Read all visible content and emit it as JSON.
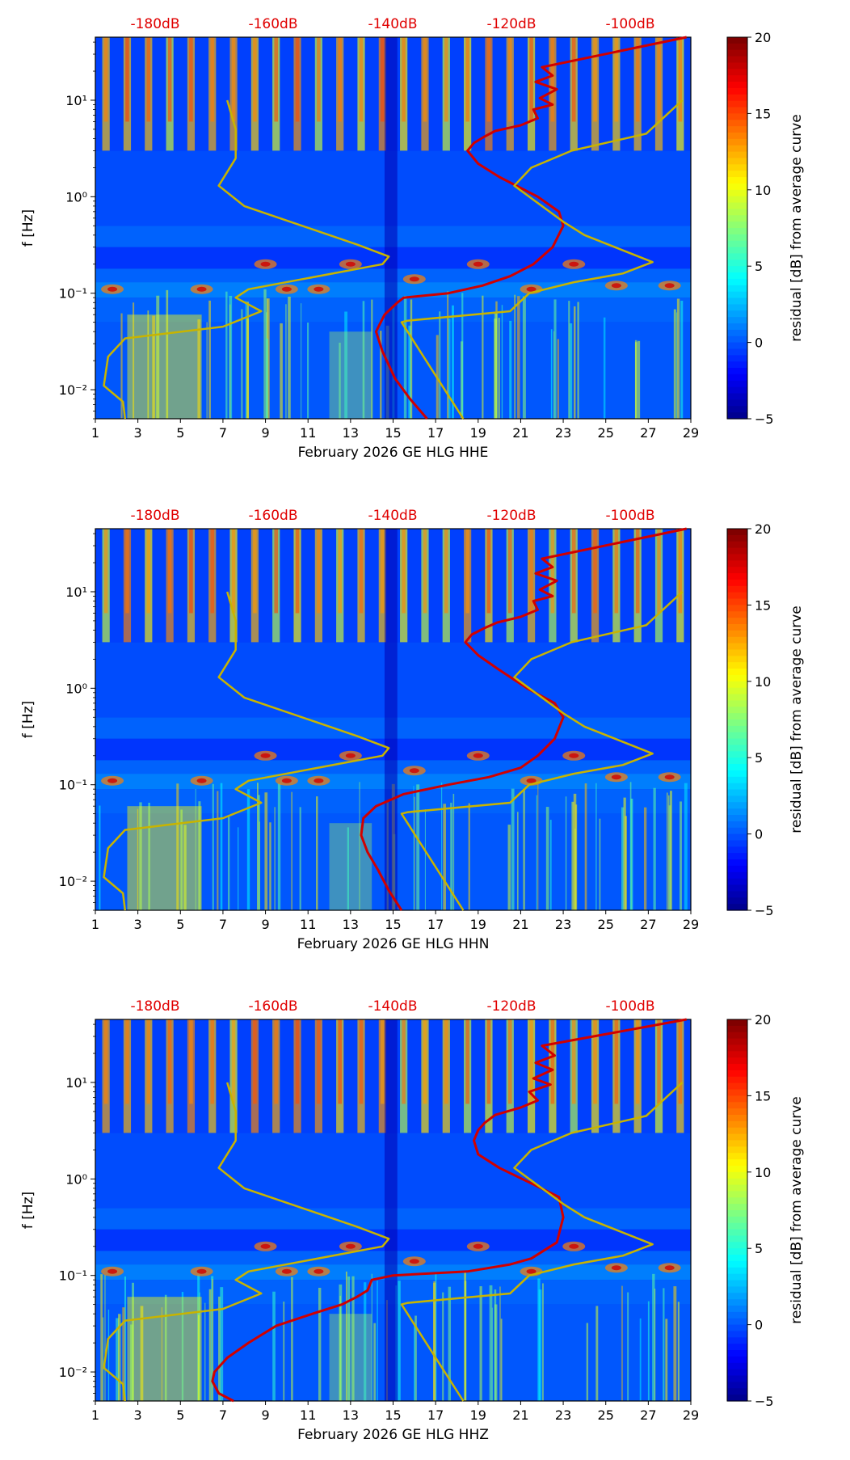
{
  "chart_data": [
    {
      "type": "heatmap",
      "xlabel": "February 2026 GE HLG  HHE",
      "ylabel": "f [Hz]",
      "x_ticks": [
        1,
        3,
        5,
        7,
        9,
        11,
        13,
        15,
        17,
        19,
        21,
        23,
        25,
        27,
        29
      ],
      "y_ticks": [
        "10⁻²",
        "10⁻¹",
        "10⁰",
        "10¹"
      ],
      "db_axis_labels": [
        "-180dB",
        "-160dB",
        "-140dB",
        "-120dB",
        "-100dB"
      ],
      "colorbar": {
        "label": "residual [dB] from average curve",
        "ticks": [
          20,
          15,
          10,
          5,
          0,
          -5
        ],
        "range": [
          -5,
          20
        ],
        "colormap": "jet"
      },
      "series": [
        {
          "color": "#d00000",
          "x": [
            16.6,
            15.8,
            15.1,
            14.5,
            14.2,
            14.6,
            15.2,
            15.5,
            17.6,
            19.2,
            20.5,
            21.6,
            22.5,
            23.0,
            22.8,
            21.8,
            20.0,
            19.0,
            18.5,
            18.8,
            19.3,
            19.8,
            21.0,
            21.8,
            21.6,
            22.5,
            21.9,
            22.7,
            21.7,
            22.5,
            22.0,
            28.8
          ],
          "y": [
            0.005,
            0.008,
            0.013,
            0.025,
            0.04,
            0.06,
            0.08,
            0.09,
            0.1,
            0.12,
            0.15,
            0.2,
            0.3,
            0.5,
            0.7,
            1.0,
            1.6,
            2.2,
            3.0,
            3.6,
            4.2,
            4.8,
            5.5,
            6.5,
            8.0,
            9.0,
            10.5,
            13.0,
            15.5,
            18.0,
            22.0,
            45.0
          ]
        },
        {
          "color": "#c8b400",
          "x": [
            2.4,
            2.3,
            1.4,
            1.6,
            2.4,
            7.0,
            8.8,
            7.6,
            8.2,
            14.5,
            14.8,
            13.3,
            8.0,
            6.8,
            7.6,
            7.6,
            7.2
          ],
          "y": [
            0.005,
            0.0075,
            0.011,
            0.022,
            0.034,
            0.045,
            0.065,
            0.09,
            0.11,
            0.2,
            0.24,
            0.32,
            0.8,
            1.3,
            2.5,
            5.0,
            10.0
          ]
        },
        {
          "color": "#c8b400",
          "x": [
            18.3,
            15.4,
            15.7,
            20.5,
            21.4,
            23.5,
            25.8,
            27.2,
            24.0,
            23.0,
            20.7,
            21.5,
            23.4,
            26.9,
            28.6
          ],
          "y": [
            0.005,
            0.05,
            0.052,
            0.065,
            0.1,
            0.13,
            0.16,
            0.21,
            0.4,
            0.55,
            1.3,
            2.0,
            3.0,
            4.5,
            10.0
          ]
        }
      ]
    },
    {
      "type": "heatmap",
      "xlabel": "February 2026 GE HLG  HHN",
      "ylabel": "f [Hz]",
      "x_ticks": [
        1,
        3,
        5,
        7,
        9,
        11,
        13,
        15,
        17,
        19,
        21,
        23,
        25,
        27,
        29
      ],
      "y_ticks": [
        "10⁻²",
        "10⁻¹",
        "10⁰",
        "10¹"
      ],
      "db_axis_labels": [
        "-180dB",
        "-160dB",
        "-140dB",
        "-120dB",
        "-100dB"
      ],
      "colorbar": {
        "label": "residual [dB] from average curve",
        "ticks": [
          20,
          15,
          10,
          5,
          0,
          -5
        ],
        "range": [
          -5,
          20
        ],
        "colormap": "jet"
      },
      "series": [
        {
          "color": "#d00000",
          "x": [
            15.4,
            14.8,
            14.3,
            13.8,
            13.5,
            13.6,
            14.2,
            15.5,
            17.6,
            19.5,
            21.0,
            21.8,
            22.6,
            23.0,
            22.6,
            21.3,
            19.9,
            19.0,
            18.4,
            18.7,
            19.3,
            19.9,
            21.0,
            21.8,
            21.6,
            22.5,
            21.9,
            22.7,
            21.7,
            22.5,
            22.0,
            28.8
          ],
          "y": [
            0.005,
            0.008,
            0.013,
            0.02,
            0.03,
            0.045,
            0.06,
            0.08,
            0.1,
            0.12,
            0.15,
            0.2,
            0.3,
            0.5,
            0.7,
            1.0,
            1.6,
            2.2,
            3.0,
            3.6,
            4.2,
            4.8,
            5.5,
            6.5,
            8.0,
            9.0,
            10.5,
            13.0,
            15.5,
            18.0,
            22.0,
            45.0
          ]
        },
        {
          "color": "#c8b400",
          "x": [
            2.4,
            2.3,
            1.4,
            1.6,
            2.4,
            7.0,
            8.8,
            7.6,
            8.2,
            14.5,
            14.8,
            13.3,
            8.0,
            6.8,
            7.6,
            7.6,
            7.2
          ],
          "y": [
            0.005,
            0.0075,
            0.011,
            0.022,
            0.034,
            0.045,
            0.065,
            0.09,
            0.11,
            0.2,
            0.24,
            0.32,
            0.8,
            1.3,
            2.5,
            5.0,
            10.0
          ]
        },
        {
          "color": "#c8b400",
          "x": [
            18.3,
            15.4,
            15.7,
            20.5,
            21.4,
            23.5,
            25.8,
            27.2,
            24.0,
            23.0,
            20.7,
            21.5,
            23.4,
            26.9,
            28.6
          ],
          "y": [
            0.005,
            0.05,
            0.052,
            0.065,
            0.1,
            0.13,
            0.16,
            0.21,
            0.4,
            0.55,
            1.3,
            2.0,
            3.0,
            4.5,
            10.0
          ]
        }
      ]
    },
    {
      "type": "heatmap",
      "xlabel": "February 2026 GE HLG  HHZ",
      "ylabel": "f [Hz]",
      "x_ticks": [
        1,
        3,
        5,
        7,
        9,
        11,
        13,
        15,
        17,
        19,
        21,
        23,
        25,
        27,
        29
      ],
      "y_ticks": [
        "10⁻²",
        "10⁻¹",
        "10⁰",
        "10¹"
      ],
      "db_axis_labels": [
        "-180dB",
        "-160dB",
        "-140dB",
        "-120dB",
        "-100dB"
      ],
      "colorbar": {
        "label": "residual [dB] from average curve",
        "ticks": [
          20,
          15,
          10,
          5,
          0,
          -5
        ],
        "range": [
          -5,
          20
        ],
        "colormap": "jet"
      },
      "series": [
        {
          "color": "#d00000",
          "x": [
            7.5,
            6.8,
            6.5,
            6.6,
            7.2,
            8.2,
            9.5,
            11.2,
            12.6,
            13.3,
            13.8,
            14.0,
            15.0,
            18.5,
            20.5,
            21.5,
            22.7,
            23.0,
            22.8,
            21.5,
            20.0,
            19.0,
            18.8,
            19.0,
            19.3,
            19.8,
            21.0,
            21.8,
            21.4,
            22.4,
            21.6,
            22.5,
            21.7,
            22.6,
            22.0,
            28.8
          ],
          "y": [
            0.005,
            0.006,
            0.008,
            0.01,
            0.014,
            0.02,
            0.03,
            0.04,
            0.05,
            0.06,
            0.07,
            0.09,
            0.1,
            0.11,
            0.13,
            0.15,
            0.22,
            0.4,
            0.65,
            0.9,
            1.3,
            1.8,
            2.5,
            3.2,
            3.8,
            4.6,
            5.5,
            6.5,
            8.0,
            9.5,
            11.0,
            13.5,
            16.0,
            19.0,
            24.0,
            45.0
          ]
        },
        {
          "color": "#c8b400",
          "x": [
            2.4,
            2.3,
            1.4,
            1.6,
            2.4,
            7.0,
            8.8,
            7.6,
            8.2,
            14.5,
            14.8,
            13.3,
            8.0,
            6.8,
            7.6,
            7.6,
            7.2
          ],
          "y": [
            0.005,
            0.0075,
            0.011,
            0.022,
            0.034,
            0.045,
            0.065,
            0.09,
            0.11,
            0.2,
            0.24,
            0.32,
            0.8,
            1.3,
            2.5,
            5.0,
            10.0
          ]
        },
        {
          "color": "#c8b400",
          "x": [
            18.3,
            15.4,
            15.7,
            20.5,
            21.4,
            23.5,
            25.8,
            27.2,
            24.0,
            23.0,
            20.7,
            21.5,
            23.4,
            26.9,
            28.6
          ],
          "y": [
            0.005,
            0.05,
            0.052,
            0.065,
            0.1,
            0.13,
            0.16,
            0.21,
            0.4,
            0.55,
            1.3,
            2.0,
            3.0,
            4.5,
            10.0
          ]
        }
      ]
    }
  ]
}
